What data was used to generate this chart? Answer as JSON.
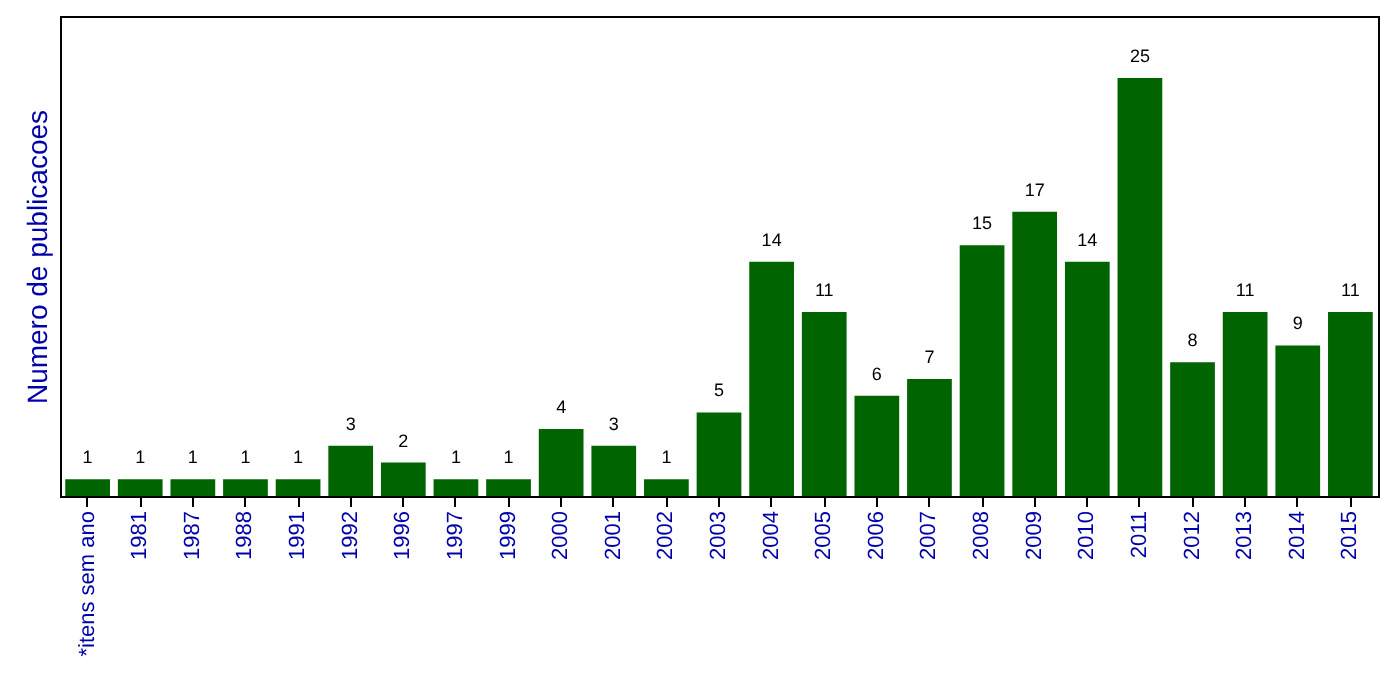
{
  "chart_data": {
    "type": "bar",
    "ylabel": "Numero de publicacoes",
    "categories": [
      "*itens sem ano",
      "1981",
      "1987",
      "1988",
      "1991",
      "1992",
      "1996",
      "1997",
      "1999",
      "2000",
      "2001",
      "2002",
      "2003",
      "2004",
      "2005",
      "2006",
      "2007",
      "2008",
      "2009",
      "2010",
      "2011",
      "2012",
      "2013",
      "2014",
      "2015"
    ],
    "values": [
      1,
      1,
      1,
      1,
      1,
      3,
      2,
      1,
      1,
      4,
      3,
      1,
      5,
      14,
      11,
      6,
      7,
      15,
      17,
      14,
      25,
      8,
      11,
      9,
      11
    ],
    "color": "#006400",
    "ylim": [
      0,
      28.7
    ],
    "data_labels": true,
    "tick_labels": "x"
  }
}
